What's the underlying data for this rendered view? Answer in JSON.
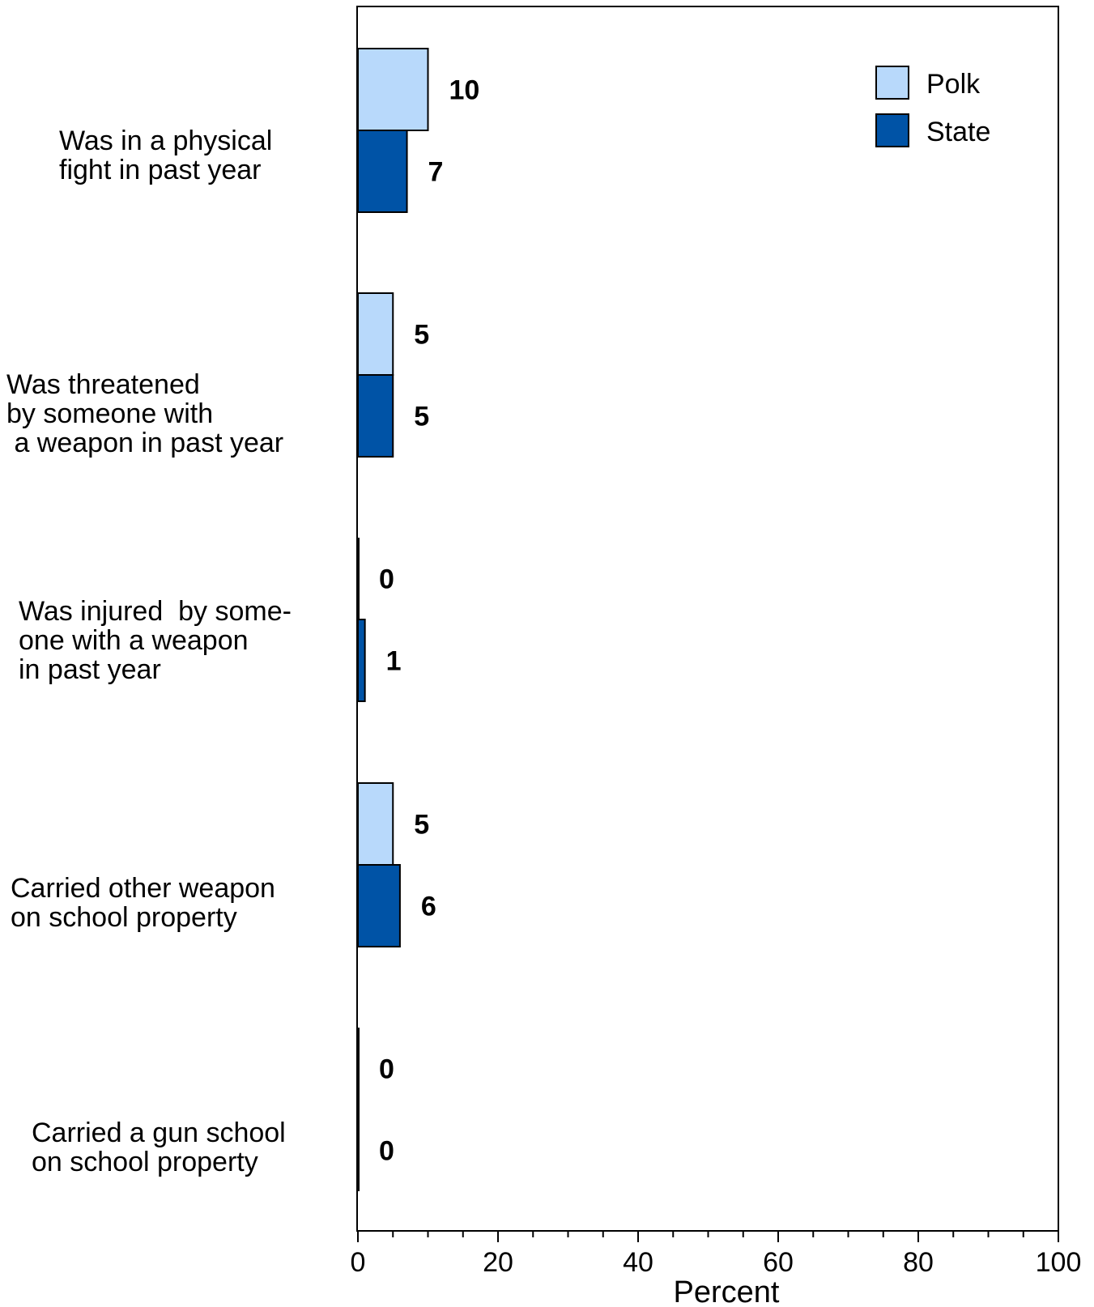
{
  "chart_data": {
    "type": "bar",
    "orientation": "horizontal",
    "categories": [
      [
        "Was in a physical",
        "fight in past year"
      ],
      [
        "Was threatened",
        "by someone with",
        " a weapon in past year"
      ],
      [
        "Was injured  by some-",
        "one with a weapon",
        "in past year"
      ],
      [
        "Carried other weapon",
        "on school property"
      ],
      [
        "Carried a gun school",
        "on school property"
      ]
    ],
    "series": [
      {
        "name": "Polk",
        "values": [
          10,
          5,
          0,
          5,
          0
        ],
        "color": "#b8d9fb"
      },
      {
        "name": "State",
        "values": [
          7,
          5,
          1,
          6,
          0
        ],
        "color": "#0053a6"
      }
    ],
    "xlabel": "Percent",
    "xlim": [
      0,
      100
    ],
    "xticks": [
      0,
      20,
      40,
      60,
      80,
      100
    ],
    "grid": false,
    "legend_position": "top-right"
  }
}
